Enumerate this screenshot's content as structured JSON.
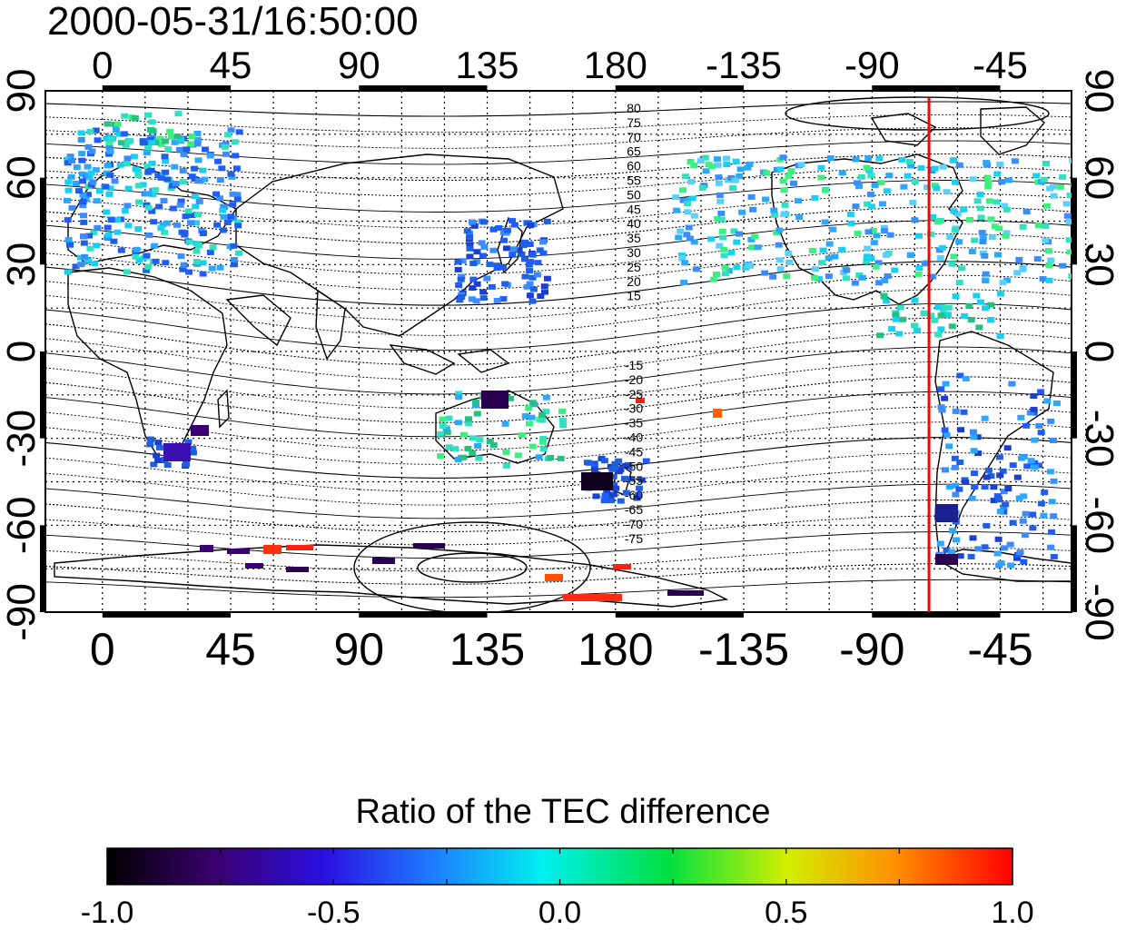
{
  "timestamp": "2000-05-31/16:50:00",
  "map": {
    "lon_top_labels": [
      "0",
      "45",
      "90",
      "135",
      "180",
      "-135",
      "-90",
      "-45"
    ],
    "lon_bottom_labels": [
      "0",
      "45",
      "90",
      "135",
      "180",
      "-135",
      "-90",
      "-45"
    ],
    "lat_left_labels": [
      "90",
      "60",
      "30",
      "0",
      "-30",
      "-60",
      "-90"
    ],
    "lat_right_labels": [
      "90",
      "60",
      "30",
      "0",
      "-30",
      "-60",
      "-90"
    ],
    "contour_labels_north": [
      "80",
      "75",
      "70",
      "65",
      "60",
      "55",
      "50",
      "45",
      "40",
      "35",
      "30",
      "25",
      "20",
      "15"
    ],
    "contour_labels_south": [
      "-15",
      "-20",
      "-25",
      "-30",
      "-35",
      "-40",
      "-45",
      "-50",
      "-55",
      "-60",
      "-65",
      "-70",
      "-75"
    ],
    "marker_line_lon": -70,
    "marker_line_color": "#ff0000"
  },
  "colorbar": {
    "title": "Ratio of the TEC difference",
    "min": -1.0,
    "max": 1.0,
    "tick_labels": [
      "-1.0",
      "-0.5",
      "0.0",
      "0.5",
      "1.0"
    ]
  }
}
